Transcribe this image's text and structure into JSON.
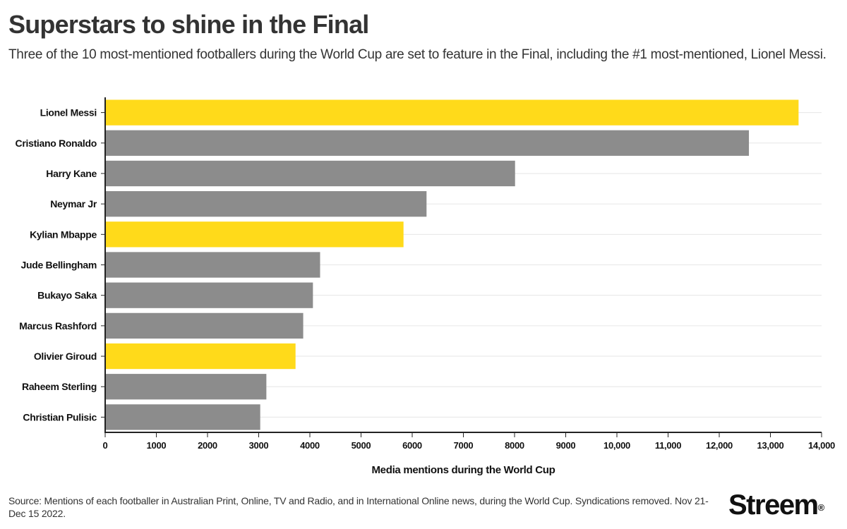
{
  "header": {
    "title": "Superstars to shine in the Final",
    "subtitle": "Three of the 10 most-mentioned footballers during the World Cup are set to feature in the Final, including the #1 most-mentioned, Lionel Messi."
  },
  "footer": {
    "source": "Source: Mentions of each footballer in Australian Print, Online, TV and Radio, and in International Online news, during the World Cup. Syndications removed. Nov 21-Dec 15 2022.",
    "logo": "Streem",
    "logo_mark": "®"
  },
  "colors": {
    "highlight": "#FFDA1A",
    "default": "#8C8C8C",
    "grid": "#E6E6E6",
    "axis": "#222222"
  },
  "chart_data": {
    "type": "bar",
    "orientation": "horizontal",
    "categories": [
      "Lionel Messi",
      "Cristiano Ronaldo",
      "Harry Kane",
      "Neymar Jr",
      "Kylian Mbappe",
      "Jude Bellingham",
      "Bukayo Saka",
      "Marcus Rashford",
      "Olivier Giroud",
      "Raheem Sterling",
      "Christian Pulisic"
    ],
    "values": [
      13550,
      12580,
      8010,
      6280,
      5830,
      4200,
      4060,
      3870,
      3720,
      3150,
      3030
    ],
    "highlighted": [
      true,
      false,
      false,
      false,
      true,
      false,
      false,
      false,
      true,
      false,
      false
    ],
    "xlabel": "Media mentions during the World Cup",
    "ylabel": "",
    "xlim": [
      0,
      14000
    ],
    "x_ticks": [
      0,
      1000,
      2000,
      3000,
      4000,
      5000,
      6000,
      7000,
      8000,
      9000,
      10000,
      11000,
      12000,
      13000,
      14000
    ],
    "x_tick_labels": [
      "0",
      "1000",
      "2000",
      "3000",
      "4000",
      "5000",
      "6000",
      "7000",
      "8000",
      "9000",
      "10,000",
      "11,000",
      "12,000",
      "13,000",
      "14,000"
    ],
    "grid": "horizontal"
  }
}
